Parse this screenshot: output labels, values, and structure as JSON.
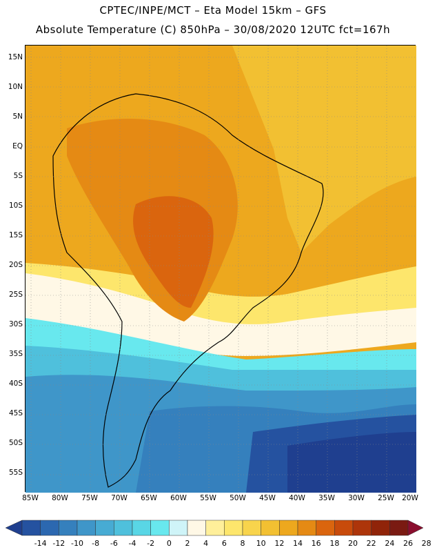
{
  "header": {
    "title_line1": "CPTEC/INPE/MCT –  Eta Model 15km – GFS",
    "title_line2": "Absolute Temperature (C) 850hPa – 30/08/2020 12UTC fct=167h"
  },
  "map": {
    "latitude_labels": [
      "15N",
      "10N",
      "5N",
      "EQ",
      "5S",
      "10S",
      "15S",
      "20S",
      "25S",
      "30S",
      "35S",
      "40S",
      "45S",
      "50S",
      "55S"
    ],
    "longitude_labels": [
      "85W",
      "80W",
      "75W",
      "70W",
      "65W",
      "60W",
      "55W",
      "50W",
      "45W",
      "40W",
      "35W",
      "30W",
      "25W",
      "20W"
    ],
    "grid": "dotted",
    "region": "South America"
  },
  "colorbar": {
    "ticks": [
      "-14",
      "-12",
      "-10",
      "-8",
      "-6",
      "-4",
      "-2",
      "0",
      "2",
      "4",
      "6",
      "8",
      "10",
      "12",
      "14",
      "16",
      "18",
      "20",
      "22",
      "24",
      "26",
      "28"
    ],
    "colors": [
      "#1f3f8f",
      "#2552a0",
      "#2c68b0",
      "#3580bd",
      "#3f96c9",
      "#47abd3",
      "#4fc0dc",
      "#59d6e5",
      "#68e8ee",
      "#cff4f8",
      "#fff8e6",
      "#ffef9a",
      "#fde66c",
      "#f8d44c",
      "#f2c032",
      "#eda81e",
      "#e58a14",
      "#da650e",
      "#c84b0b",
      "#ad350a",
      "#902409",
      "#7a1a12",
      "#8a0e2e"
    ]
  }
}
